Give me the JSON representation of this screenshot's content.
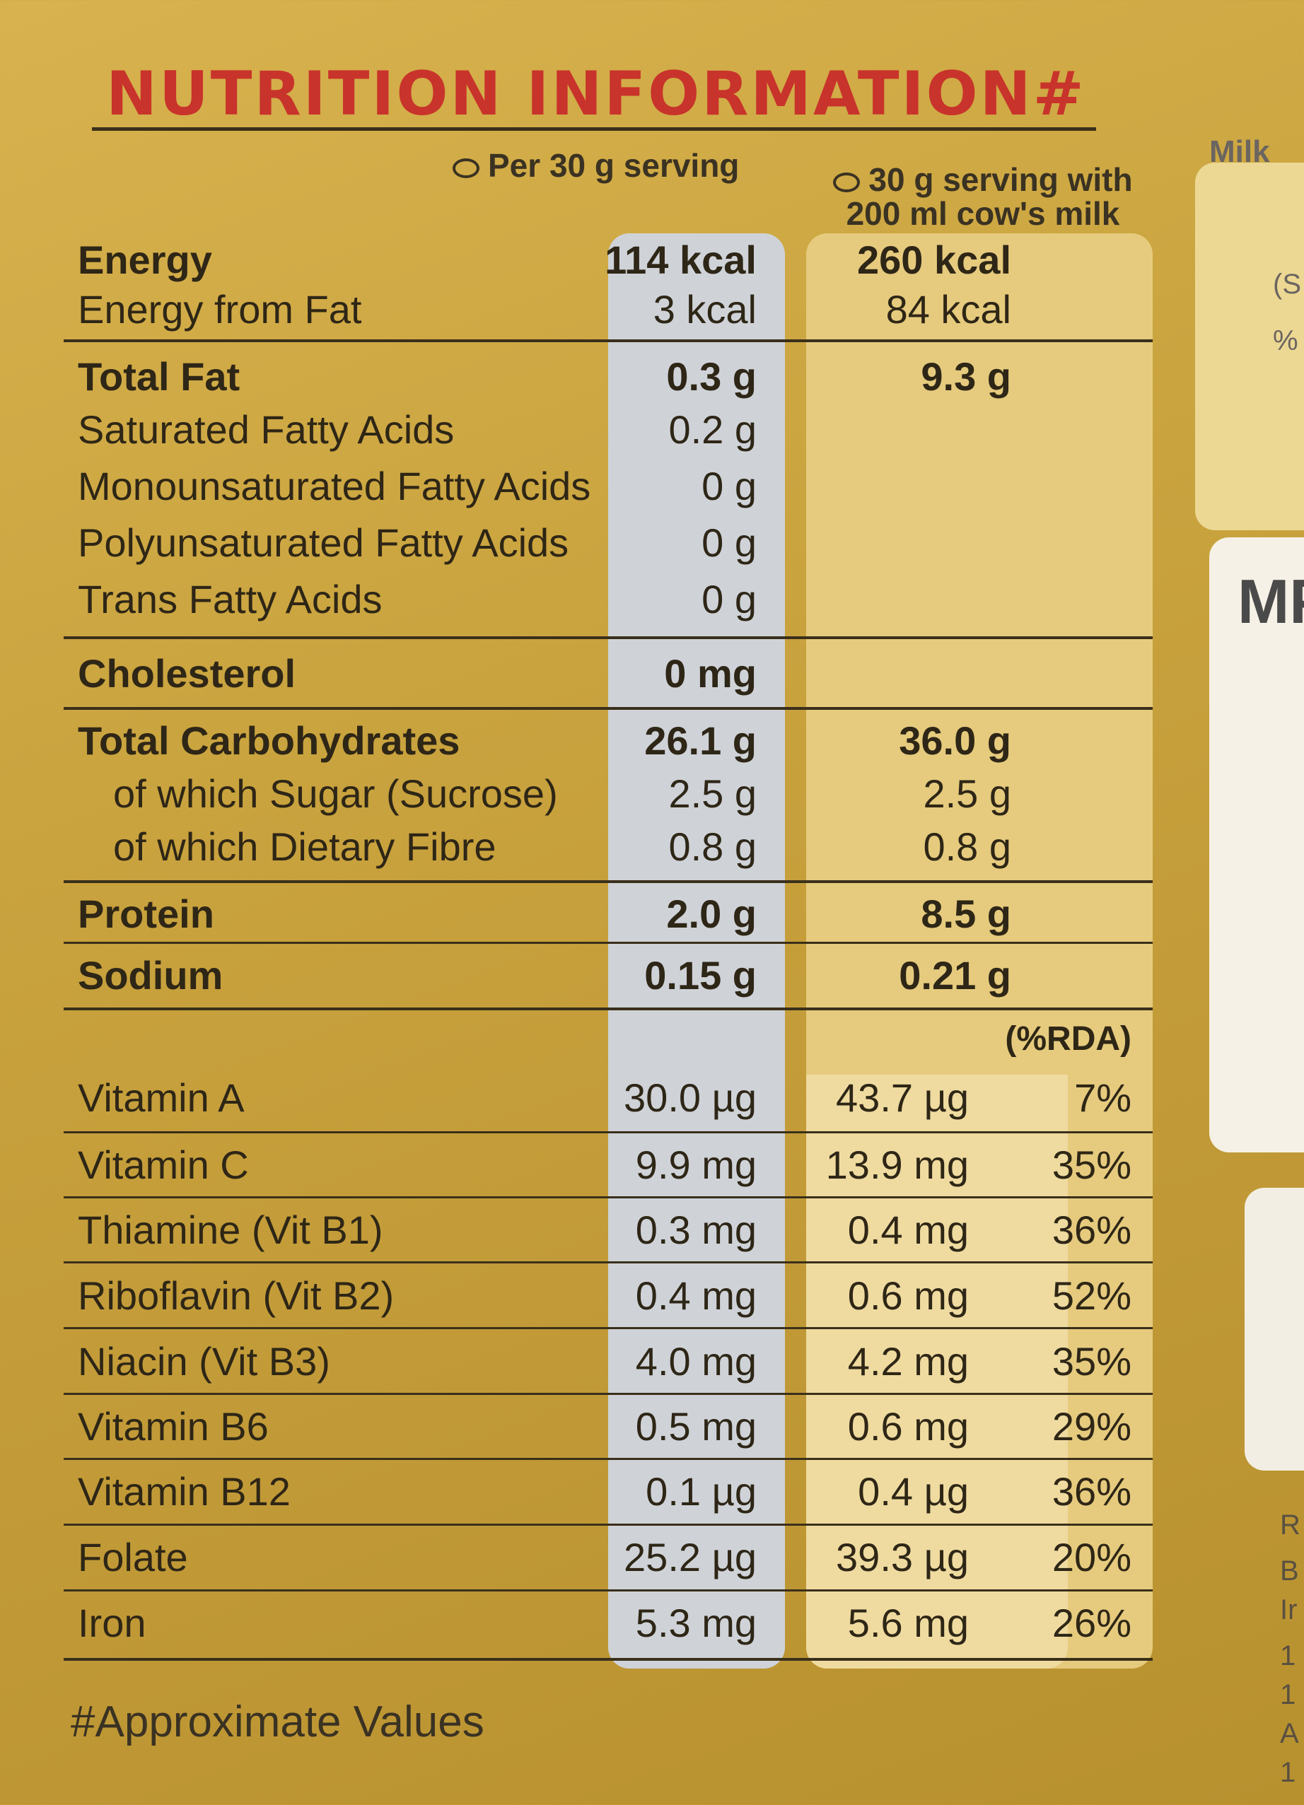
{
  "title": "NUTRITION INFORMATION#",
  "columns": {
    "col1": "Per 30 g serving",
    "col2_line1": "30 g serving with",
    "col2_line2": "200 ml cow's milk"
  },
  "rows": [
    {
      "label": "Energy",
      "v1": "114 kcal",
      "v2": "260 kcal"
    },
    {
      "label": "Energy from Fat",
      "v1": "3 kcal",
      "v2": "84 kcal"
    },
    {
      "label": "Total Fat",
      "v1": "0.3 g",
      "v2": "9.3 g"
    },
    {
      "label": "Saturated Fatty Acids",
      "v1": "0.2 g"
    },
    {
      "label": "Monounsaturated Fatty Acids",
      "v1": "0 g"
    },
    {
      "label": "Polyunsaturated Fatty Acids",
      "v1": "0 g"
    },
    {
      "label": "Trans Fatty Acids",
      "v1": "0 g"
    },
    {
      "label": "Cholesterol",
      "v1": "0 mg"
    },
    {
      "label": "Total Carbohydrates",
      "v1": "26.1 g",
      "v2": "36.0 g"
    },
    {
      "label": "of which Sugar (Sucrose)",
      "v1": "2.5 g",
      "v2": "2.5 g"
    },
    {
      "label": "of which Dietary Fibre",
      "v1": "0.8 g",
      "v2": "0.8 g"
    },
    {
      "label": "Protein",
      "v1": "2.0 g",
      "v2": "8.5 g"
    },
    {
      "label": "Sodium",
      "v1": "0.15 g",
      "v2": "0.21 g"
    }
  ],
  "rda_header": "(%RDA)",
  "vitamins": [
    {
      "label": "Vitamin A",
      "v1": "30.0 µg",
      "v2": "43.7 µg",
      "rda": "7%"
    },
    {
      "label": "Vitamin C",
      "v1": "9.9 mg",
      "v2": "13.9 mg",
      "rda": "35%"
    },
    {
      "label": "Thiamine (Vit B1)",
      "v1": "0.3 mg",
      "v2": "0.4 mg",
      "rda": "36%"
    },
    {
      "label": "Riboflavin (Vit B2)",
      "v1": "0.4 mg",
      "v2": "0.6 mg",
      "rda": "52%"
    },
    {
      "label": "Niacin (Vit B3)",
      "v1": "4.0 mg",
      "v2": "4.2 mg",
      "rda": "35%"
    },
    {
      "label": "Vitamin B6",
      "v1": "0.5 mg",
      "v2": "0.6 mg",
      "rda": "29%"
    },
    {
      "label": "Vitamin B12",
      "v1": "0.1 µg",
      "v2": "0.4 µg",
      "rda": "36%"
    },
    {
      "label": "Folate",
      "v1": "25.2 µg",
      "v2": "39.3 µg",
      "rda": "20%"
    },
    {
      "label": "Iron",
      "v1": "5.3 mg",
      "v2": "5.6 mg",
      "rda": "26%"
    }
  ],
  "footnote": "#Approximate Values",
  "side_panel": {
    "milk": "Milk",
    "paren": "(S",
    "pct": "%",
    "mp": "MP",
    "letters": [
      "R",
      "B",
      "Ir",
      "1",
      "1",
      "A",
      "1"
    ]
  },
  "colors": {
    "title": "#c8332b",
    "background": "#caa43f",
    "band1": "#cfd3d8",
    "band2": "#e6cb7e"
  }
}
